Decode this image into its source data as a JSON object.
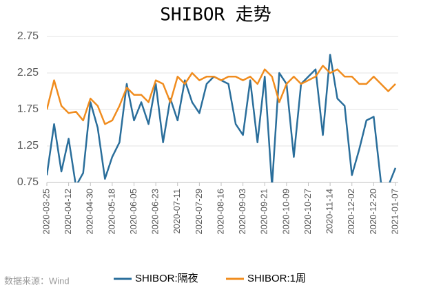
{
  "chart_data": {
    "type": "line",
    "title": "SHIBOR 走势",
    "source": "数据来源：Wind",
    "x": [
      "2020-03-25",
      "2020-03-31",
      "2020-04-06",
      "2020-04-12",
      "2020-04-18",
      "2020-04-24",
      "2020-04-30",
      "2020-05-06",
      "2020-05-12",
      "2020-05-18",
      "2020-05-24",
      "2020-05-30",
      "2020-06-05",
      "2020-06-11",
      "2020-06-17",
      "2020-06-23",
      "2020-06-29",
      "2020-07-05",
      "2020-07-11",
      "2020-07-17",
      "2020-07-23",
      "2020-07-29",
      "2020-08-04",
      "2020-08-10",
      "2020-08-16",
      "2020-08-22",
      "2020-08-28",
      "2020-09-03",
      "2020-09-09",
      "2020-09-15",
      "2020-09-21",
      "2020-09-27",
      "2020-10-03",
      "2020-10-09",
      "2020-10-15",
      "2020-10-21",
      "2020-10-27",
      "2020-11-02",
      "2020-11-08",
      "2020-11-14",
      "2020-11-20",
      "2020-11-26",
      "2020-12-02",
      "2020-12-08",
      "2020-12-14",
      "2020-12-20",
      "2020-12-26",
      "2021-01-01",
      "2021-01-07"
    ],
    "series": [
      {
        "name": "SHIBOR:隔夜",
        "color": "#2a6e9b",
        "values": [
          0.85,
          1.55,
          0.9,
          1.35,
          0.7,
          0.88,
          1.85,
          1.5,
          0.8,
          1.1,
          1.3,
          2.1,
          1.6,
          1.85,
          1.55,
          2.1,
          1.3,
          1.9,
          1.6,
          2.15,
          1.85,
          1.7,
          2.1,
          2.2,
          2.15,
          2.1,
          1.55,
          1.4,
          2.15,
          1.3,
          2.2,
          0.7,
          2.25,
          2.1,
          1.1,
          2.1,
          2.2,
          2.3,
          1.4,
          2.5,
          1.9,
          1.8,
          0.85,
          1.2,
          1.6,
          1.65,
          0.75,
          0.7,
          0.95
        ]
      },
      {
        "name": "SHIBOR:1周",
        "color": "#f08c1e",
        "values": [
          1.75,
          2.15,
          1.8,
          1.7,
          1.72,
          1.6,
          1.9,
          1.8,
          1.55,
          1.6,
          1.8,
          2.05,
          1.95,
          1.95,
          1.85,
          2.15,
          2.1,
          1.85,
          2.2,
          2.1,
          2.25,
          2.15,
          2.2,
          2.2,
          2.15,
          2.2,
          2.2,
          2.15,
          2.2,
          2.1,
          2.3,
          2.2,
          1.85,
          2.1,
          2.2,
          2.1,
          2.15,
          2.2,
          2.35,
          2.25,
          2.3,
          2.2,
          2.2,
          2.1,
          2.1,
          2.2,
          2.1,
          2.0,
          2.1
        ]
      }
    ],
    "xlim": [
      "2020-03-25",
      "2021-01-07"
    ],
    "xticks": [
      "2020-03-25",
      "2020-04-12",
      "2020-04-30",
      "2020-05-18",
      "2020-06-05",
      "2020-06-23",
      "2020-07-11",
      "2020-07-29",
      "2020-08-16",
      "2020-09-03",
      "2020-09-21",
      "2020-10-09",
      "2020-10-27",
      "2020-11-14",
      "2020-12-02",
      "2020-12-20",
      "2021-01-07"
    ],
    "ylim": [
      0.75,
      2.75
    ],
    "yticks": [
      0.75,
      1.25,
      1.75,
      2.25,
      2.75
    ],
    "grid": true
  }
}
